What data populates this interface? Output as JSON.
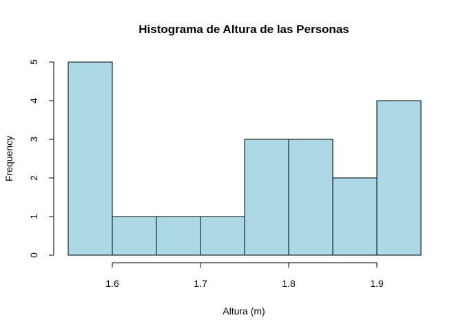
{
  "chart_data": {
    "type": "bar",
    "title": "Histograma de Altura de las Personas",
    "xlabel": "Altura (m)",
    "ylabel": "Frequency",
    "bins": [
      {
        "start": 1.55,
        "end": 1.6,
        "count": 5
      },
      {
        "start": 1.6,
        "end": 1.65,
        "count": 1
      },
      {
        "start": 1.65,
        "end": 1.7,
        "count": 1
      },
      {
        "start": 1.7,
        "end": 1.75,
        "count": 1
      },
      {
        "start": 1.75,
        "end": 1.8,
        "count": 3
      },
      {
        "start": 1.8,
        "end": 1.85,
        "count": 3
      },
      {
        "start": 1.85,
        "end": 1.9,
        "count": 2
      },
      {
        "start": 1.9,
        "end": 1.95,
        "count": 4
      }
    ],
    "xticks": [
      1.6,
      1.7,
      1.8,
      1.9
    ],
    "xtick_labels": [
      "1.6",
      "1.7",
      "1.8",
      "1.9"
    ],
    "yticks": [
      0,
      1,
      2,
      3,
      4,
      5
    ],
    "ytick_labels": [
      "0",
      "1",
      "2",
      "3",
      "4",
      "5"
    ],
    "xlim": [
      1.55,
      1.95
    ],
    "ylim": [
      0,
      5
    ],
    "bar_color": "#add8e6",
    "grid": false,
    "legend": "none"
  }
}
